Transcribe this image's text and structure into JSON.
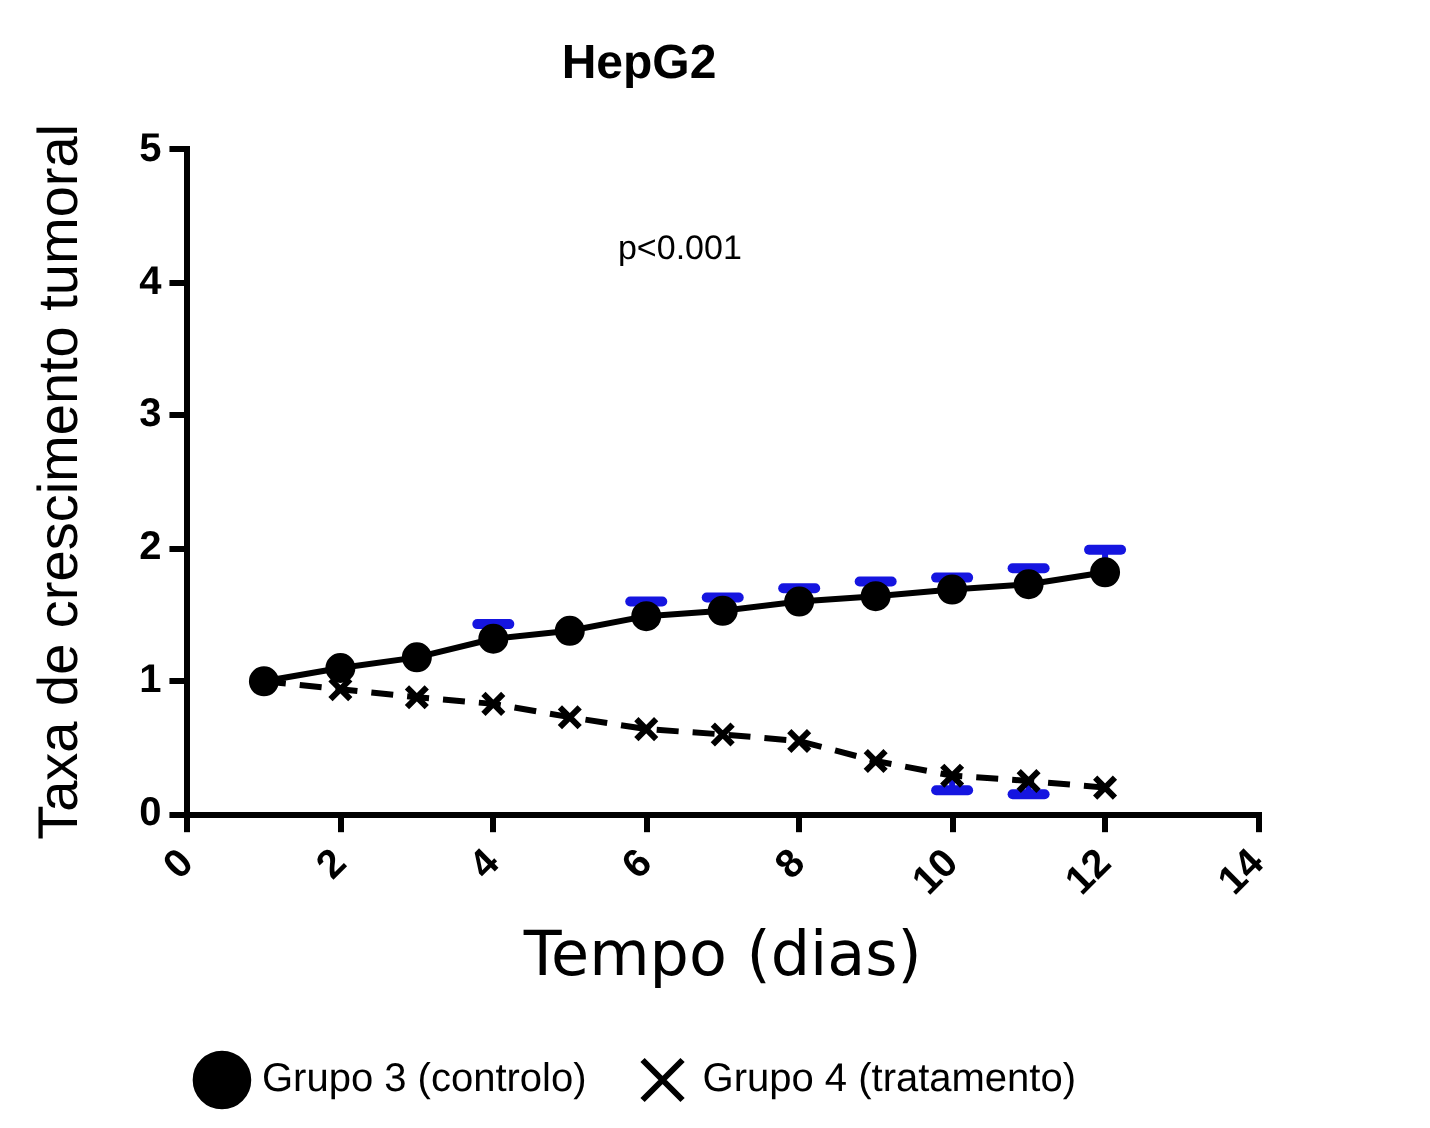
{
  "chart_data": {
    "type": "line",
    "title": "HepG2",
    "xlabel": "Tempo (dias)",
    "ylabel": "Taxa de crescimento tumoral",
    "annotations": [
      "p<0.001"
    ],
    "x": [
      1,
      2,
      3,
      4,
      5,
      6,
      7,
      8,
      9,
      10,
      11,
      12
    ],
    "series": [
      {
        "name": "Grupo 3 (controlo)",
        "color": "#000000",
        "marker": "circle",
        "line_style": "solid",
        "values": [
          1.0,
          1.1,
          1.18,
          1.32,
          1.38,
          1.49,
          1.53,
          1.6,
          1.64,
          1.69,
          1.73,
          1.82
        ],
        "errors": [
          null,
          null,
          null,
          [
            1.32,
            1.43
          ],
          null,
          [
            1.49,
            1.6
          ],
          [
            1.53,
            1.63
          ],
          [
            1.6,
            1.7
          ],
          [
            1.64,
            1.75
          ],
          [
            1.69,
            1.78
          ],
          [
            1.73,
            1.85
          ],
          [
            1.82,
            1.99
          ]
        ]
      },
      {
        "name": "Grupo 4 (tratamento)",
        "color": "#000000",
        "marker": "cross",
        "line_style": "dashed",
        "values": [
          1.0,
          0.94,
          0.88,
          0.83,
          0.73,
          0.64,
          0.6,
          0.55,
          0.4,
          0.29,
          0.25,
          0.2
        ],
        "errors": [
          null,
          null,
          null,
          null,
          null,
          null,
          null,
          null,
          null,
          [
            0.18,
            0.29
          ],
          [
            0.15,
            0.25
          ],
          null
        ]
      }
    ],
    "xlim": [
      0,
      14
    ],
    "xticks": [
      0,
      2,
      4,
      6,
      8,
      10,
      12,
      14
    ],
    "ylim": [
      0,
      5
    ],
    "yticks": [
      0,
      1,
      2,
      3,
      4,
      5
    ],
    "legend": "bottom"
  }
}
